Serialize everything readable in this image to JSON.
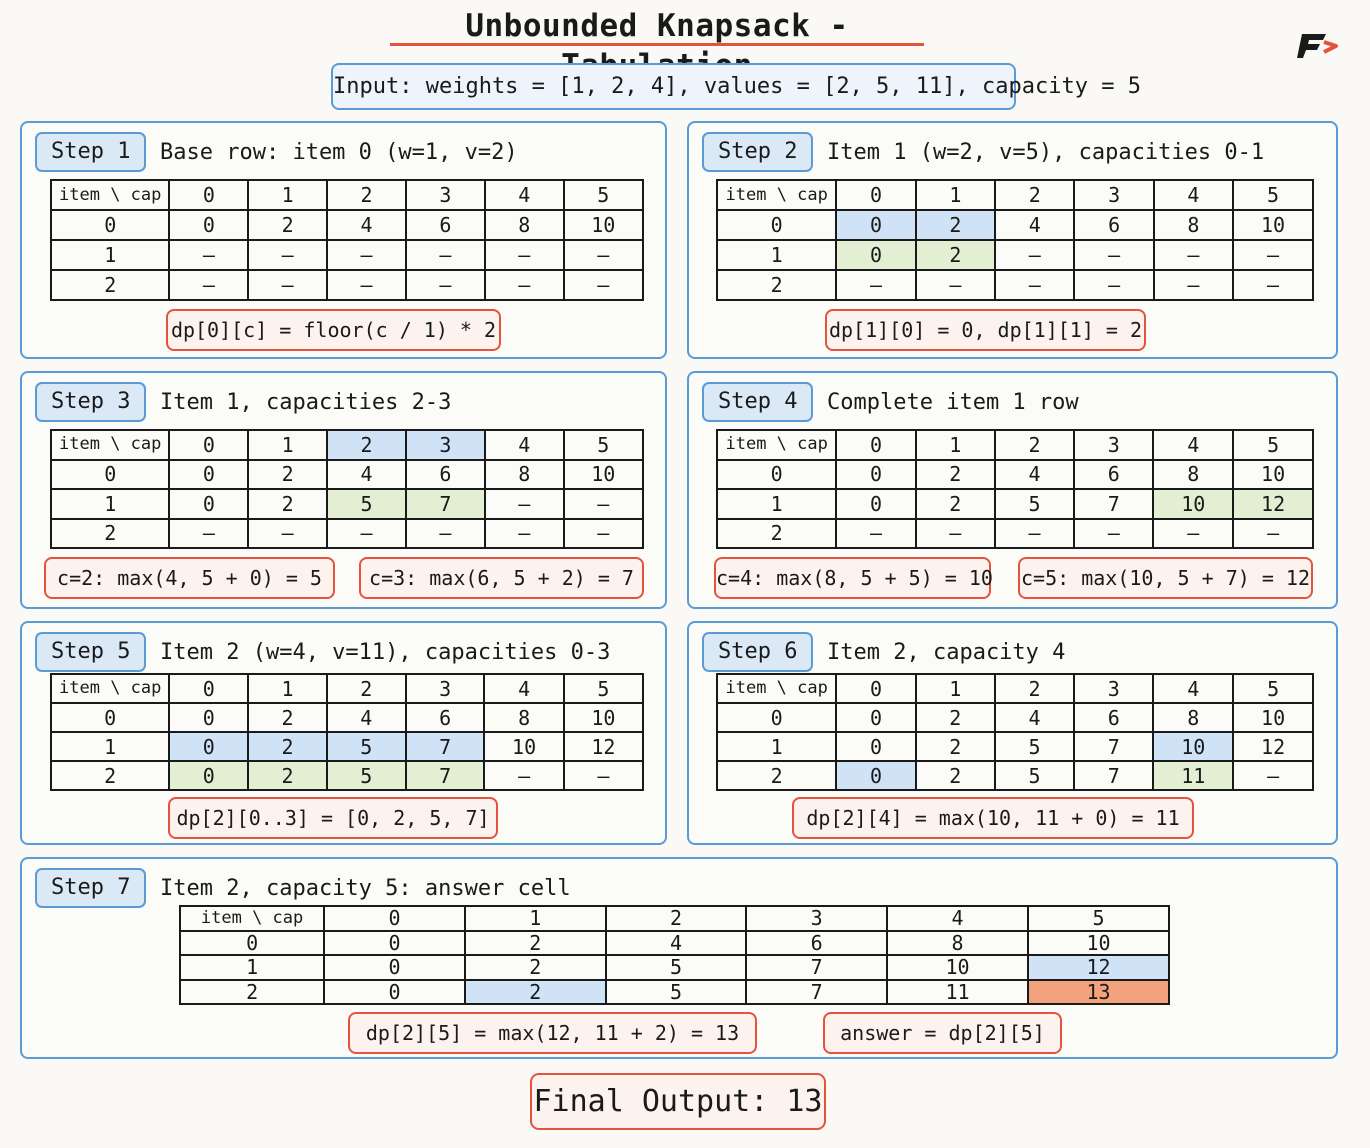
{
  "title": "Unbounded Knapsack - Tabulation",
  "input": "Input:  weights = [1, 2, 4],  values = [2, 5, 11],  capacity = 5",
  "header_row": [
    "item \\ cap",
    "0",
    "1",
    "2",
    "3",
    "4",
    "5"
  ],
  "colors": {
    "blue_highlight": "#cfe2f6",
    "green_highlight": "#e2efd2",
    "orange_highlight": "#f3a27e",
    "panel_border": "#5b9bd5",
    "note_border": "#e5533d"
  },
  "logo_icon": "brand-logo-icon",
  "steps": [
    {
      "label": "Step 1",
      "title": "Base row:  item 0 (w=1, v=2)",
      "rows": [
        [
          "0",
          "0",
          "2",
          "4",
          "6",
          "8",
          "10"
        ],
        [
          "1",
          "-",
          "-",
          "-",
          "-",
          "-",
          "-"
        ],
        [
          "2",
          "-",
          "-",
          "-",
          "-",
          "-",
          "-"
        ]
      ],
      "highlights": [],
      "notes": [
        "dp[0][c] = floor(c / 1) * 2"
      ]
    },
    {
      "label": "Step 2",
      "title": "Item 1 (w=2, v=5),  capacities 0-1",
      "rows": [
        [
          "0",
          "0",
          "2",
          "4",
          "6",
          "8",
          "10"
        ],
        [
          "1",
          "0",
          "2",
          "-",
          "-",
          "-",
          "-"
        ],
        [
          "2",
          "-",
          "-",
          "-",
          "-",
          "-",
          "-"
        ]
      ],
      "highlights": [
        {
          "row": 0,
          "col": 1,
          "color": "blue"
        },
        {
          "row": 0,
          "col": 2,
          "color": "blue"
        },
        {
          "row": 1,
          "col": 1,
          "color": "green"
        },
        {
          "row": 1,
          "col": 2,
          "color": "green"
        }
      ],
      "notes": [
        "dp[1][0] = 0,  dp[1][1] = 2"
      ]
    },
    {
      "label": "Step 3",
      "title": "Item 1,  capacities 2-3",
      "rows": [
        [
          "0",
          "0",
          "2",
          "4",
          "6",
          "8",
          "10"
        ],
        [
          "1",
          "0",
          "2",
          "5",
          "7",
          "-",
          "-"
        ],
        [
          "2",
          "-",
          "-",
          "-",
          "-",
          "-",
          "-"
        ]
      ],
      "header_highlights": [
        {
          "col": 3,
          "color": "blue"
        },
        {
          "col": 4,
          "color": "blue"
        }
      ],
      "highlights": [
        {
          "row": 1,
          "col": 3,
          "color": "green"
        },
        {
          "row": 1,
          "col": 4,
          "color": "green"
        }
      ],
      "notes": [
        "c=2:  max(4, 5 + 0) = 5",
        "c=3:  max(6, 5 + 2) = 7"
      ]
    },
    {
      "label": "Step 4",
      "title": "Complete  item  1  row",
      "rows": [
        [
          "0",
          "0",
          "2",
          "4",
          "6",
          "8",
          "10"
        ],
        [
          "1",
          "0",
          "2",
          "5",
          "7",
          "10",
          "12"
        ],
        [
          "2",
          "-",
          "-",
          "-",
          "-",
          "-",
          "-"
        ]
      ],
      "highlights": [
        {
          "row": 1,
          "col": 5,
          "color": "green"
        },
        {
          "row": 1,
          "col": 6,
          "color": "green"
        }
      ],
      "notes": [
        "c=4:  max(8, 5 + 5) = 10",
        "c=5:  max(10, 5 + 7) = 12"
      ]
    },
    {
      "label": "Step 5",
      "title": "Item 2 (w=4, v=11),  capacities 0-3",
      "rows": [
        [
          "0",
          "0",
          "2",
          "4",
          "6",
          "8",
          "10"
        ],
        [
          "1",
          "0",
          "2",
          "5",
          "7",
          "10",
          "12"
        ],
        [
          "2",
          "0",
          "2",
          "5",
          "7",
          "-",
          "-"
        ]
      ],
      "highlights": [
        {
          "row": 1,
          "col": 1,
          "color": "blue"
        },
        {
          "row": 1,
          "col": 2,
          "color": "blue"
        },
        {
          "row": 1,
          "col": 3,
          "color": "blue"
        },
        {
          "row": 1,
          "col": 4,
          "color": "blue"
        },
        {
          "row": 2,
          "col": 1,
          "color": "green"
        },
        {
          "row": 2,
          "col": 2,
          "color": "green"
        },
        {
          "row": 2,
          "col": 3,
          "color": "green"
        },
        {
          "row": 2,
          "col": 4,
          "color": "green"
        }
      ],
      "notes": [
        "dp[2][0..3] = [0, 2, 5, 7]"
      ]
    },
    {
      "label": "Step 6",
      "title": "Item 2,  capacity 4",
      "rows": [
        [
          "0",
          "0",
          "2",
          "4",
          "6",
          "8",
          "10"
        ],
        [
          "1",
          "0",
          "2",
          "5",
          "7",
          "10",
          "12"
        ],
        [
          "2",
          "0",
          "2",
          "5",
          "7",
          "11",
          "-"
        ]
      ],
      "highlights": [
        {
          "row": 1,
          "col": 5,
          "color": "blue"
        },
        {
          "row": 2,
          "col": 1,
          "color": "blue"
        },
        {
          "row": 2,
          "col": 5,
          "color": "green"
        }
      ],
      "notes": [
        "dp[2][4] = max(10, 11 + 0) = 11"
      ]
    },
    {
      "label": "Step 7",
      "title": "Item 2,  capacity 5:  answer cell",
      "rows": [
        [
          "0",
          "0",
          "2",
          "4",
          "6",
          "8",
          "10"
        ],
        [
          "1",
          "0",
          "2",
          "5",
          "7",
          "10",
          "12"
        ],
        [
          "2",
          "0",
          "2",
          "5",
          "7",
          "11",
          "13"
        ]
      ],
      "highlights": [
        {
          "row": 1,
          "col": 6,
          "color": "blue"
        },
        {
          "row": 2,
          "col": 2,
          "color": "blue"
        },
        {
          "row": 2,
          "col": 6,
          "color": "orange"
        }
      ],
      "notes": [
        "dp[2][5] = max(12, 11 + 2) = 13",
        "answer = dp[2][5]"
      ]
    }
  ],
  "final_output": "Final Output: 13"
}
